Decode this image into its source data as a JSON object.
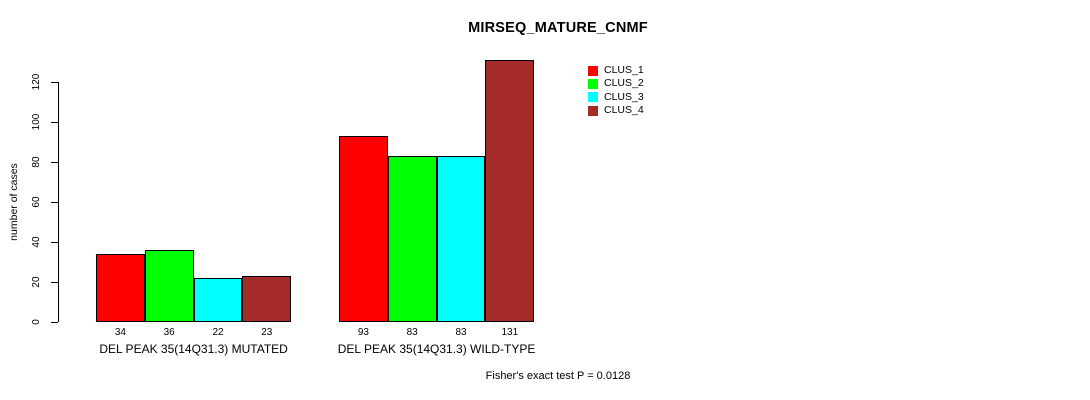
{
  "chart_data": {
    "type": "bar",
    "title": "MIRSEQ_MATURE_CNMF",
    "ylabel": "number of cases",
    "xlabel": "",
    "categories": [
      "DEL PEAK 35(14Q31.3) MUTATED",
      "DEL PEAK 35(14Q31.3) WILD-TYPE"
    ],
    "series": [
      {
        "name": "CLUS_1",
        "color": "#FF0000",
        "values": [
          34,
          93
        ]
      },
      {
        "name": "CLUS_2",
        "color": "#00FF00",
        "values": [
          36,
          83
        ]
      },
      {
        "name": "CLUS_3",
        "color": "#00FFFF",
        "values": [
          22,
          83
        ]
      },
      {
        "name": "CLUS_4",
        "color": "#A52A2A",
        "values": [
          23,
          131
        ]
      }
    ],
    "yticks": [
      0,
      20,
      40,
      60,
      80,
      100,
      120
    ],
    "ylim": [
      0,
      131
    ],
    "grid": false,
    "legend_position": "top-right-inside",
    "bar_value_labels": [
      [
        34,
        36,
        22,
        23
      ],
      [
        93,
        83,
        83,
        131
      ]
    ],
    "annotation": "Fisher's exact test P = 0.0128"
  }
}
